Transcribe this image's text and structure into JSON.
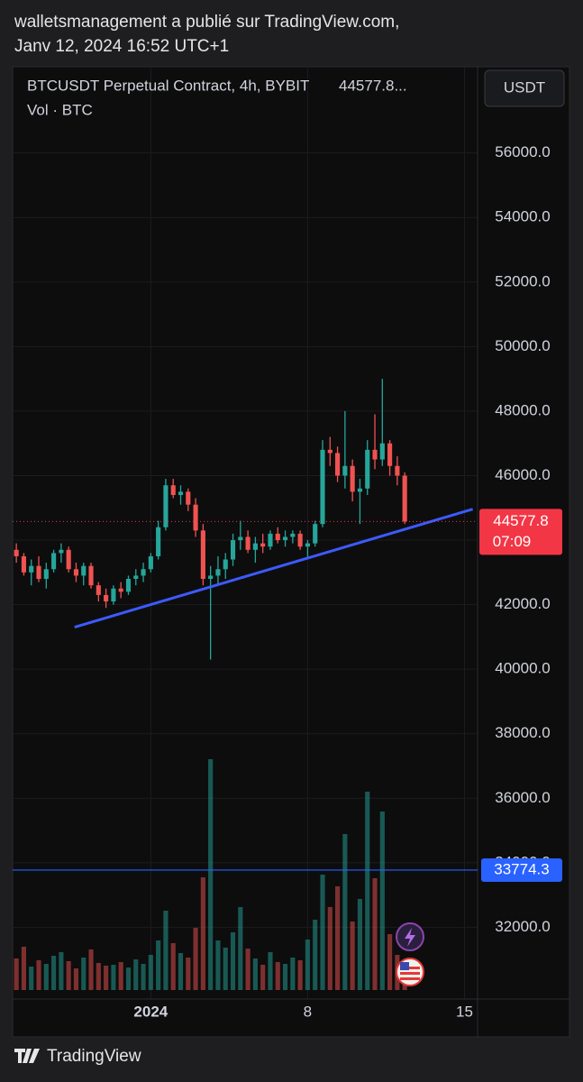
{
  "header": {
    "publisher": "walletsmanagement a publié sur TradingView.com,",
    "date": "Janv 12, 2024 16:52 UTC+1"
  },
  "chart_data": {
    "type": "candlestick",
    "symbol": "BTCUSDT Perpetual Contract, 4h, BYBIT",
    "header_price": "44577.8...",
    "volume_label": "Vol · BTC",
    "currency_button": "USDT",
    "up_color": "#26a69a",
    "down_color": "#ef5350",
    "open": [
      43700,
      43500,
      43000,
      43200,
      42800,
      43100,
      43600,
      43700,
      43100,
      42900,
      43200,
      42600,
      42300,
      42100,
      42500,
      42400,
      42800,
      42900,
      43100,
      43500,
      44400,
      45700,
      45400,
      45500,
      45100,
      44300,
      42800,
      42900,
      43100,
      43400,
      44000,
      44100,
      43700,
      43900,
      43800,
      44200,
      44000,
      44100,
      44200,
      43800,
      43900,
      44500,
      46800,
      46700,
      46000,
      46300,
      45500,
      45600,
      46800,
      46500,
      47000,
      46300,
      46000
    ],
    "high": [
      43900,
      43600,
      43400,
      43500,
      43300,
      43700,
      43900,
      43800,
      43300,
      43300,
      43300,
      42700,
      42500,
      42600,
      42700,
      42900,
      43100,
      43300,
      43600,
      44600,
      45900,
      45900,
      45700,
      45600,
      45300,
      44500,
      43200,
      43500,
      43600,
      44200,
      44600,
      44300,
      44100,
      44200,
      44300,
      44400,
      44300,
      44300,
      44300,
      44000,
      44600,
      47100,
      47200,
      46900,
      48000,
      46500,
      45900,
      47100,
      47900,
      49000,
      47100,
      46600,
      46100
    ],
    "low": [
      43300,
      42900,
      42600,
      42700,
      42500,
      43000,
      43300,
      43000,
      42700,
      42600,
      42500,
      42100,
      41900,
      42000,
      42200,
      42300,
      42600,
      42700,
      43000,
      43400,
      44300,
      45300,
      45100,
      44900,
      44100,
      42600,
      40300,
      42600,
      42800,
      43200,
      43700,
      43600,
      43300,
      43600,
      43700,
      43900,
      43800,
      43900,
      43700,
      43400,
      43800,
      44400,
      46300,
      45800,
      45600,
      45200,
      44500,
      45400,
      46200,
      46300,
      46000,
      45700,
      44500
    ],
    "close": [
      43500,
      43000,
      43200,
      42800,
      43100,
      43600,
      43700,
      43100,
      42900,
      43200,
      42600,
      42300,
      42100,
      42500,
      42400,
      42800,
      42900,
      43100,
      43500,
      44400,
      45700,
      45400,
      45500,
      45100,
      44300,
      42800,
      42900,
      43100,
      43400,
      44000,
      44100,
      43700,
      43900,
      43800,
      44200,
      44000,
      44100,
      44200,
      43800,
      43900,
      44500,
      46800,
      46700,
      46000,
      46300,
      45500,
      45600,
      46800,
      46500,
      47000,
      46300,
      46000,
      44577.8
    ],
    "volume": [
      3500,
      4800,
      2600,
      3300,
      2900,
      3800,
      4200,
      3200,
      2400,
      3600,
      4500,
      3000,
      2700,
      2800,
      3100,
      2500,
      3400,
      2900,
      3900,
      5500,
      8800,
      5200,
      4100,
      3600,
      6900,
      12500,
      25600,
      5500,
      4700,
      6400,
      9200,
      4600,
      3500,
      2800,
      4200,
      3100,
      2900,
      3600,
      3300,
      5600,
      7800,
      12800,
      9200,
      11500,
      17300,
      7600,
      10100,
      22000,
      12400,
      19800,
      6200,
      3900,
      2600
    ],
    "xlim": [
      -0.5,
      61.75
    ],
    "xticks": [
      {
        "value": 18,
        "label": "2024"
      },
      {
        "value": 39,
        "label": "8"
      },
      {
        "value": 60,
        "label": "15"
      }
    ],
    "ylim": [
      30000,
      57500
    ],
    "yticks": [
      {
        "value": 32000,
        "label": "32000.0"
      },
      {
        "value": 34000,
        "label": "34000.0"
      },
      {
        "value": 36000,
        "label": "36000.0"
      },
      {
        "value": 38000,
        "label": "38000.0"
      },
      {
        "value": 40000,
        "label": "40000.0"
      },
      {
        "value": 42000,
        "label": "42000.0"
      },
      {
        "value": 44000,
        "label": "44000.0"
      },
      {
        "value": 46000,
        "label": "46000.0"
      },
      {
        "value": 48000,
        "label": "48000.0"
      },
      {
        "value": 50000,
        "label": "50000.0"
      },
      {
        "value": 52000,
        "label": "52000.0"
      },
      {
        "value": 54000,
        "label": "54000.0"
      },
      {
        "value": 56000,
        "label": "56000.0"
      }
    ],
    "vlim": [
      0,
      30000
    ],
    "grid": true,
    "last_price": 44577.8,
    "countdown": "07:09",
    "last_price_color": "#f23645",
    "hline": {
      "value": 33774.3,
      "color": "#2962ff"
    },
    "trendline": {
      "color": "#3d5afe",
      "x": [
        7.8,
        61.1
      ],
      "y": [
        41302,
        44962
      ]
    }
  },
  "footer": {
    "brand": "TradingView"
  }
}
